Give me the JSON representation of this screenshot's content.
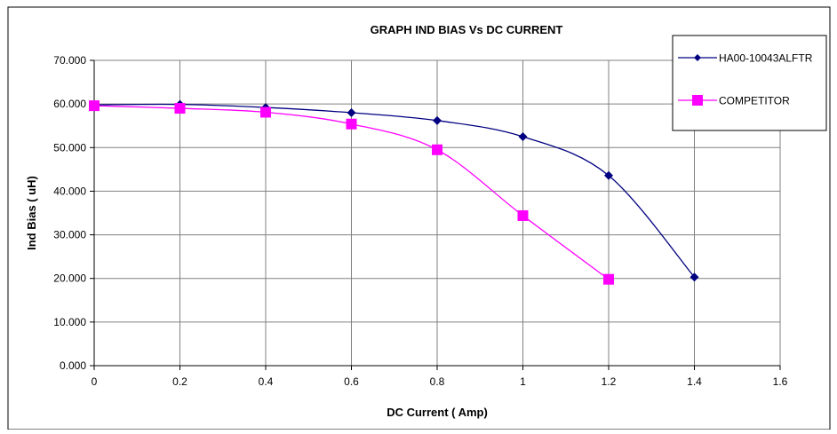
{
  "chart_data": {
    "type": "line",
    "title": "GRAPH IND  BIAS Vs DC CURRENT",
    "xlabel": "DC Current ( Amp)",
    "ylabel": "Ind Bias ( uH)",
    "xlim": [
      0,
      1.6
    ],
    "ylim": [
      0,
      70
    ],
    "x_ticks": [
      "0",
      "0.2",
      "0.4",
      "0.6",
      "0.8",
      "1",
      "1.2",
      "1.4",
      "1.6"
    ],
    "y_ticks": [
      "0.000",
      "10.000",
      "20.000",
      "30.000",
      "40.000",
      "50.000",
      "60.000",
      "70.000"
    ],
    "grid": true,
    "legend_position": "top-right",
    "series": [
      {
        "name": "HA00-10043ALFTR",
        "color": "#000080",
        "marker": "diamond",
        "x": [
          0,
          0.2,
          0.4,
          0.6,
          0.8,
          1.0,
          1.2,
          1.4
        ],
        "y": [
          59.8,
          59.9,
          59.2,
          58.0,
          56.2,
          52.5,
          43.6,
          20.3
        ]
      },
      {
        "name": "COMPETITOR",
        "color": "#FF00FF",
        "marker": "square",
        "x": [
          0,
          0.2,
          0.4,
          0.6,
          0.8,
          1.0,
          1.2
        ],
        "y": [
          59.6,
          59.0,
          58.1,
          55.4,
          49.5,
          34.4,
          19.8
        ]
      }
    ]
  }
}
